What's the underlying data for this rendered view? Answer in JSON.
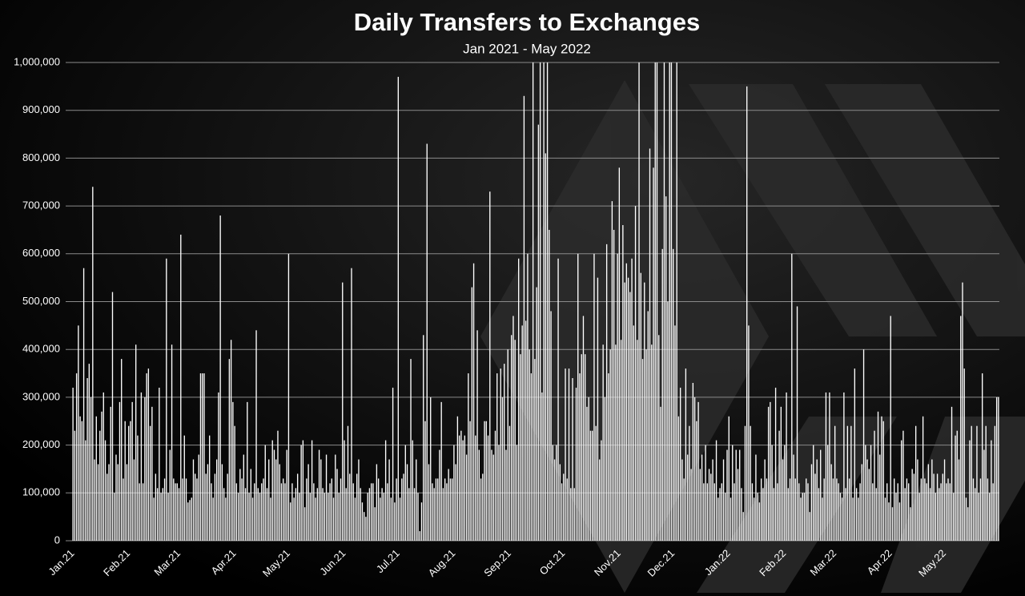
{
  "chart_data": {
    "type": "bar",
    "title": "Daily Transfers to Exchanges",
    "subtitle": "Jan 2021 - May 2022",
    "categories": [
      "Jan.21",
      null,
      null,
      null,
      null,
      null,
      null,
      null,
      null,
      null,
      null,
      null,
      null,
      null,
      null,
      null,
      null,
      null,
      null,
      null,
      null,
      null,
      null,
      null,
      null,
      null,
      null,
      null,
      null,
      null,
      null,
      "Feb.21",
      null,
      null,
      null,
      null,
      null,
      null,
      null,
      null,
      null,
      null,
      null,
      null,
      null,
      null,
      null,
      null,
      null,
      null,
      null,
      null,
      null,
      null,
      null,
      null,
      null,
      null,
      null,
      "Mar.21",
      null,
      null,
      null,
      null,
      null,
      null,
      null,
      null,
      null,
      null,
      null,
      null,
      null,
      null,
      null,
      null,
      null,
      null,
      null,
      null,
      null,
      null,
      null,
      null,
      null,
      null,
      null,
      null,
      null,
      null,
      "Apr.21",
      null,
      null,
      null,
      null,
      null,
      null,
      null,
      null,
      null,
      null,
      null,
      null,
      null,
      null,
      null,
      null,
      null,
      null,
      null,
      null,
      null,
      null,
      null,
      null,
      null,
      null,
      null,
      null,
      null,
      "May.21",
      null,
      null,
      null,
      null,
      null,
      null,
      null,
      null,
      null,
      null,
      null,
      null,
      null,
      null,
      null,
      null,
      null,
      null,
      null,
      null,
      null,
      null,
      null,
      null,
      null,
      null,
      null,
      null,
      null,
      null,
      "Jun.21",
      null,
      null,
      null,
      null,
      null,
      null,
      null,
      null,
      null,
      null,
      null,
      null,
      null,
      null,
      null,
      null,
      null,
      null,
      null,
      null,
      null,
      null,
      null,
      null,
      null,
      null,
      null,
      null,
      null,
      "Jul.21",
      null,
      null,
      null,
      null,
      null,
      null,
      null,
      null,
      null,
      null,
      null,
      null,
      null,
      null,
      null,
      null,
      null,
      null,
      null,
      null,
      null,
      null,
      null,
      null,
      null,
      null,
      null,
      null,
      null,
      null,
      "Aug.21",
      null,
      null,
      null,
      null,
      null,
      null,
      null,
      null,
      null,
      null,
      null,
      null,
      null,
      null,
      null,
      null,
      null,
      null,
      null,
      null,
      null,
      null,
      null,
      null,
      null,
      null,
      null,
      null,
      null,
      null,
      "Sep.21",
      null,
      null,
      null,
      null,
      null,
      null,
      null,
      null,
      null,
      null,
      null,
      null,
      null,
      null,
      null,
      null,
      null,
      null,
      null,
      null,
      null,
      null,
      null,
      null,
      null,
      null,
      null,
      null,
      null,
      "Oct.21",
      null,
      null,
      null,
      null,
      null,
      null,
      null,
      null,
      null,
      null,
      null,
      null,
      null,
      null,
      null,
      null,
      null,
      null,
      null,
      null,
      null,
      null,
      null,
      null,
      null,
      null,
      null,
      null,
      null,
      null,
      "Nov.21",
      null,
      null,
      null,
      null,
      null,
      null,
      null,
      null,
      null,
      null,
      null,
      null,
      null,
      null,
      null,
      null,
      null,
      null,
      null,
      null,
      null,
      null,
      null,
      null,
      null,
      null,
      null,
      null,
      null,
      "Dec.21",
      null,
      null,
      null,
      null,
      null,
      null,
      null,
      null,
      null,
      null,
      null,
      null,
      null,
      null,
      null,
      null,
      null,
      null,
      null,
      null,
      null,
      null,
      null,
      null,
      null,
      null,
      null,
      null,
      null,
      null,
      "Jan.22",
      null,
      null,
      null,
      null,
      null,
      null,
      null,
      null,
      null,
      null,
      null,
      null,
      null,
      null,
      null,
      null,
      null,
      null,
      null,
      null,
      null,
      null,
      null,
      null,
      null,
      null,
      null,
      null,
      null,
      null,
      "Feb.22",
      null,
      null,
      null,
      null,
      null,
      null,
      null,
      null,
      null,
      null,
      null,
      null,
      null,
      null,
      null,
      null,
      null,
      null,
      null,
      null,
      null,
      null,
      null,
      null,
      null,
      null,
      null,
      "Mar.22",
      null,
      null,
      null,
      null,
      null,
      null,
      null,
      null,
      null,
      null,
      null,
      null,
      null,
      null,
      null,
      null,
      null,
      null,
      null,
      null,
      null,
      null,
      null,
      null,
      null,
      null,
      null,
      null,
      null,
      null,
      "Apr.22",
      null,
      null,
      null,
      null,
      null,
      null,
      null,
      null,
      null,
      null,
      null,
      null,
      null,
      null,
      null,
      null,
      null,
      null,
      null,
      null,
      null,
      null,
      null,
      null,
      null,
      null,
      null,
      null,
      null,
      "May.22",
      null,
      null,
      null,
      null,
      null,
      null,
      null,
      null,
      null,
      null,
      null,
      null,
      null,
      null,
      null,
      null,
      null,
      null,
      null,
      null,
      null,
      null,
      null,
      null,
      null,
      null,
      null,
      null,
      null,
      null
    ],
    "values": [
      320000,
      230000,
      350000,
      450000,
      260000,
      250000,
      570000,
      210000,
      340000,
      370000,
      300000,
      740000,
      170000,
      260000,
      160000,
      230000,
      270000,
      310000,
      210000,
      140000,
      160000,
      280000,
      520000,
      100000,
      180000,
      160000,
      290000,
      380000,
      130000,
      250000,
      160000,
      240000,
      250000,
      290000,
      170000,
      410000,
      220000,
      120000,
      310000,
      120000,
      300000,
      350000,
      360000,
      240000,
      280000,
      90000,
      140000,
      110000,
      320000,
      100000,
      110000,
      130000,
      590000,
      100000,
      190000,
      410000,
      130000,
      120000,
      120000,
      110000,
      640000,
      130000,
      220000,
      130000,
      80000,
      85000,
      90000,
      170000,
      140000,
      130000,
      180000,
      350000,
      350000,
      350000,
      140000,
      160000,
      220000,
      120000,
      90000,
      140000,
      170000,
      310000,
      680000,
      160000,
      110000,
      90000,
      140000,
      380000,
      420000,
      290000,
      240000,
      120000,
      100000,
      150000,
      130000,
      180000,
      110000,
      290000,
      100000,
      150000,
      90000,
      120000,
      440000,
      110000,
      100000,
      120000,
      130000,
      200000,
      110000,
      170000,
      90000,
      210000,
      190000,
      170000,
      230000,
      160000,
      120000,
      130000,
      120000,
      190000,
      600000,
      80000,
      120000,
      90000,
      110000,
      140000,
      100000,
      200000,
      210000,
      70000,
      130000,
      160000,
      100000,
      210000,
      120000,
      90000,
      110000,
      190000,
      170000,
      110000,
      100000,
      180000,
      100000,
      120000,
      130000,
      90000,
      180000,
      150000,
      100000,
      130000,
      540000,
      210000,
      110000,
      240000,
      140000,
      570000,
      120000,
      90000,
      140000,
      170000,
      110000,
      80000,
      60000,
      50000,
      100000,
      110000,
      120000,
      120000,
      70000,
      160000,
      130000,
      90000,
      110000,
      100000,
      210000,
      120000,
      170000,
      90000,
      320000,
      80000,
      130000,
      970000,
      90000,
      130000,
      140000,
      200000,
      160000,
      110000,
      380000,
      210000,
      110000,
      170000,
      100000,
      20000,
      80000,
      430000,
      250000,
      830000,
      160000,
      300000,
      120000,
      110000,
      130000,
      130000,
      190000,
      290000,
      110000,
      130000,
      120000,
      150000,
      130000,
      130000,
      200000,
      160000,
      260000,
      220000,
      230000,
      210000,
      220000,
      180000,
      350000,
      250000,
      530000,
      580000,
      220000,
      440000,
      190000,
      130000,
      140000,
      250000,
      250000,
      220000,
      730000,
      190000,
      180000,
      230000,
      350000,
      200000,
      360000,
      300000,
      370000,
      190000,
      400000,
      240000,
      430000,
      470000,
      420000,
      200000,
      590000,
      390000,
      450000,
      930000,
      460000,
      600000,
      400000,
      350000,
      1000000,
      380000,
      530000,
      870000,
      1000000,
      310000,
      1000000,
      810000,
      1000000,
      650000,
      480000,
      200000,
      170000,
      200000,
      590000,
      160000,
      120000,
      140000,
      360000,
      130000,
      360000,
      110000,
      340000,
      110000,
      320000,
      600000,
      350000,
      390000,
      470000,
      390000,
      280000,
      300000,
      230000,
      230000,
      600000,
      240000,
      550000,
      170000,
      210000,
      410000,
      300000,
      620000,
      350000,
      400000,
      710000,
      650000,
      410000,
      600000,
      780000,
      420000,
      660000,
      540000,
      580000,
      550000,
      520000,
      590000,
      450000,
      700000,
      420000,
      1000000,
      560000,
      380000,
      540000,
      400000,
      480000,
      820000,
      410000,
      780000,
      1000000,
      1000000,
      430000,
      280000,
      610000,
      1000000,
      720000,
      500000,
      1000000,
      1000000,
      610000,
      450000,
      1000000,
      260000,
      320000,
      170000,
      130000,
      360000,
      180000,
      240000,
      150000,
      330000,
      300000,
      250000,
      290000,
      150000,
      180000,
      120000,
      200000,
      120000,
      150000,
      140000,
      170000,
      120000,
      210000,
      90000,
      110000,
      120000,
      170000,
      100000,
      190000,
      260000,
      90000,
      200000,
      120000,
      190000,
      150000,
      190000,
      110000,
      60000,
      240000,
      950000,
      450000,
      240000,
      120000,
      90000,
      180000,
      100000,
      80000,
      130000,
      110000,
      170000,
      130000,
      280000,
      290000,
      200000,
      110000,
      320000,
      120000,
      230000,
      280000,
      170000,
      200000,
      310000,
      110000,
      130000,
      600000,
      180000,
      130000,
      490000,
      120000,
      90000,
      100000,
      100000,
      130000,
      120000,
      60000,
      160000,
      200000,
      140000,
      170000,
      110000,
      190000,
      90000,
      130000,
      310000,
      200000,
      310000,
      160000,
      130000,
      240000,
      130000,
      120000,
      100000,
      90000,
      310000,
      110000,
      240000,
      130000,
      240000,
      90000,
      360000,
      110000,
      90000,
      120000,
      160000,
      400000,
      200000,
      170000,
      150000,
      200000,
      120000,
      230000,
      110000,
      270000,
      180000,
      260000,
      250000,
      90000,
      120000,
      80000,
      470000,
      70000,
      130000,
      100000,
      120000,
      80000,
      210000,
      230000,
      110000,
      130000,
      120000,
      70000,
      150000,
      140000,
      240000,
      170000,
      100000,
      130000,
      260000,
      130000,
      120000,
      160000,
      110000,
      170000,
      140000,
      100000,
      140000,
      110000,
      120000,
      140000,
      170000,
      120000,
      130000,
      120000,
      280000,
      100000,
      220000,
      230000,
      170000,
      470000,
      540000,
      360000,
      90000,
      70000,
      210000,
      240000,
      130000,
      110000,
      240000,
      100000,
      130000,
      350000,
      190000,
      240000,
      130000,
      100000,
      210000,
      120000,
      240000,
      300000,
      300000
    ],
    "color": "#ffffff",
    "ylim": [
      0,
      1000000
    ],
    "yticks": [
      0,
      {
        "value": 100000,
        "label": "100,000"
      },
      {
        "value": 200000,
        "label": "200,000"
      },
      {
        "value": 300000,
        "label": "300,000"
      },
      {
        "value": 400000,
        "label": "400,000"
      },
      {
        "value": 500000,
        "label": "500,000"
      },
      {
        "value": 600000,
        "label": "600,000"
      },
      {
        "value": 700000,
        "label": "700,000"
      },
      {
        "value": 800000,
        "label": "800,000"
      },
      {
        "value": 900000,
        "label": "900,000"
      },
      {
        "value": 1000000,
        "label": "1,000,000"
      }
    ],
    "grid": true
  }
}
